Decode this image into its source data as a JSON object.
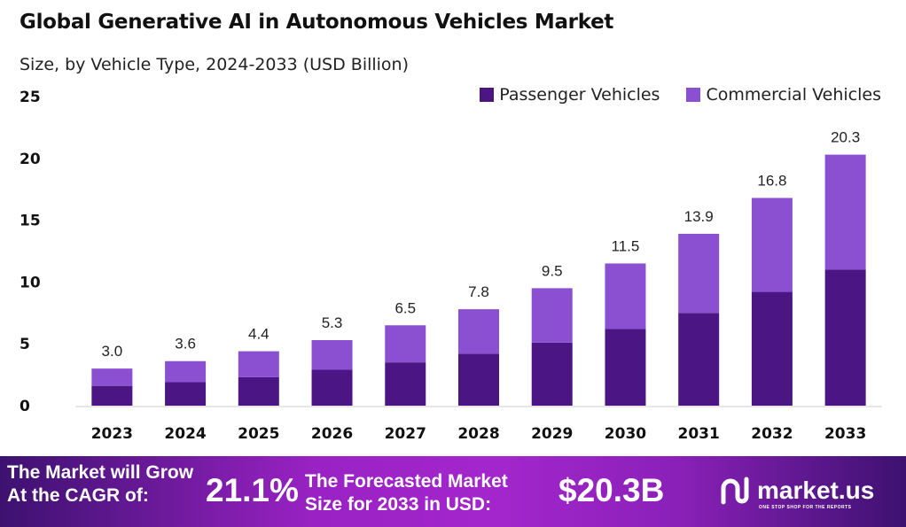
{
  "chart_data": {
    "type": "bar",
    "stacked": true,
    "title": "Global Generative AI in Autonomous Vehicles Market",
    "subtitle": "Size, by Vehicle Type, 2024-2033 (USD Billion)",
    "xlabel": "",
    "ylabel": "",
    "ylim": [
      0,
      25
    ],
    "yticks": [
      0,
      5,
      10,
      15,
      20,
      25
    ],
    "grid": false,
    "legend_position": "top-right",
    "categories": [
      "2023",
      "2024",
      "2025",
      "2026",
      "2027",
      "2028",
      "2029",
      "2030",
      "2031",
      "2032",
      "2033"
    ],
    "totals": [
      "3.0",
      "3.6",
      "4.4",
      "5.3",
      "6.5",
      "7.8",
      "9.5",
      "11.5",
      "13.9",
      "16.8",
      "20.3"
    ],
    "series": [
      {
        "name": "Passenger Vehicles",
        "color": "#4b1683",
        "values": [
          1.6,
          1.9,
          2.3,
          2.9,
          3.5,
          4.2,
          5.1,
          6.2,
          7.5,
          9.2,
          11.0
        ]
      },
      {
        "name": "Commercial Vehicles",
        "color": "#8b50d2",
        "values": [
          1.4,
          1.7,
          2.1,
          2.4,
          3.0,
          3.6,
          4.4,
          5.3,
          6.4,
          7.6,
          9.3
        ]
      }
    ]
  },
  "footer": {
    "cagr_label": "The Market will Grow At the CAGR of:",
    "cagr_value": "21.1%",
    "forecast_label": "The Forecasted Market Size for 2033 in USD:",
    "forecast_value": "$20.3B",
    "logo_text": "market.us",
    "logo_tagline": "ONE STOP SHOP FOR THE REPORTS"
  }
}
